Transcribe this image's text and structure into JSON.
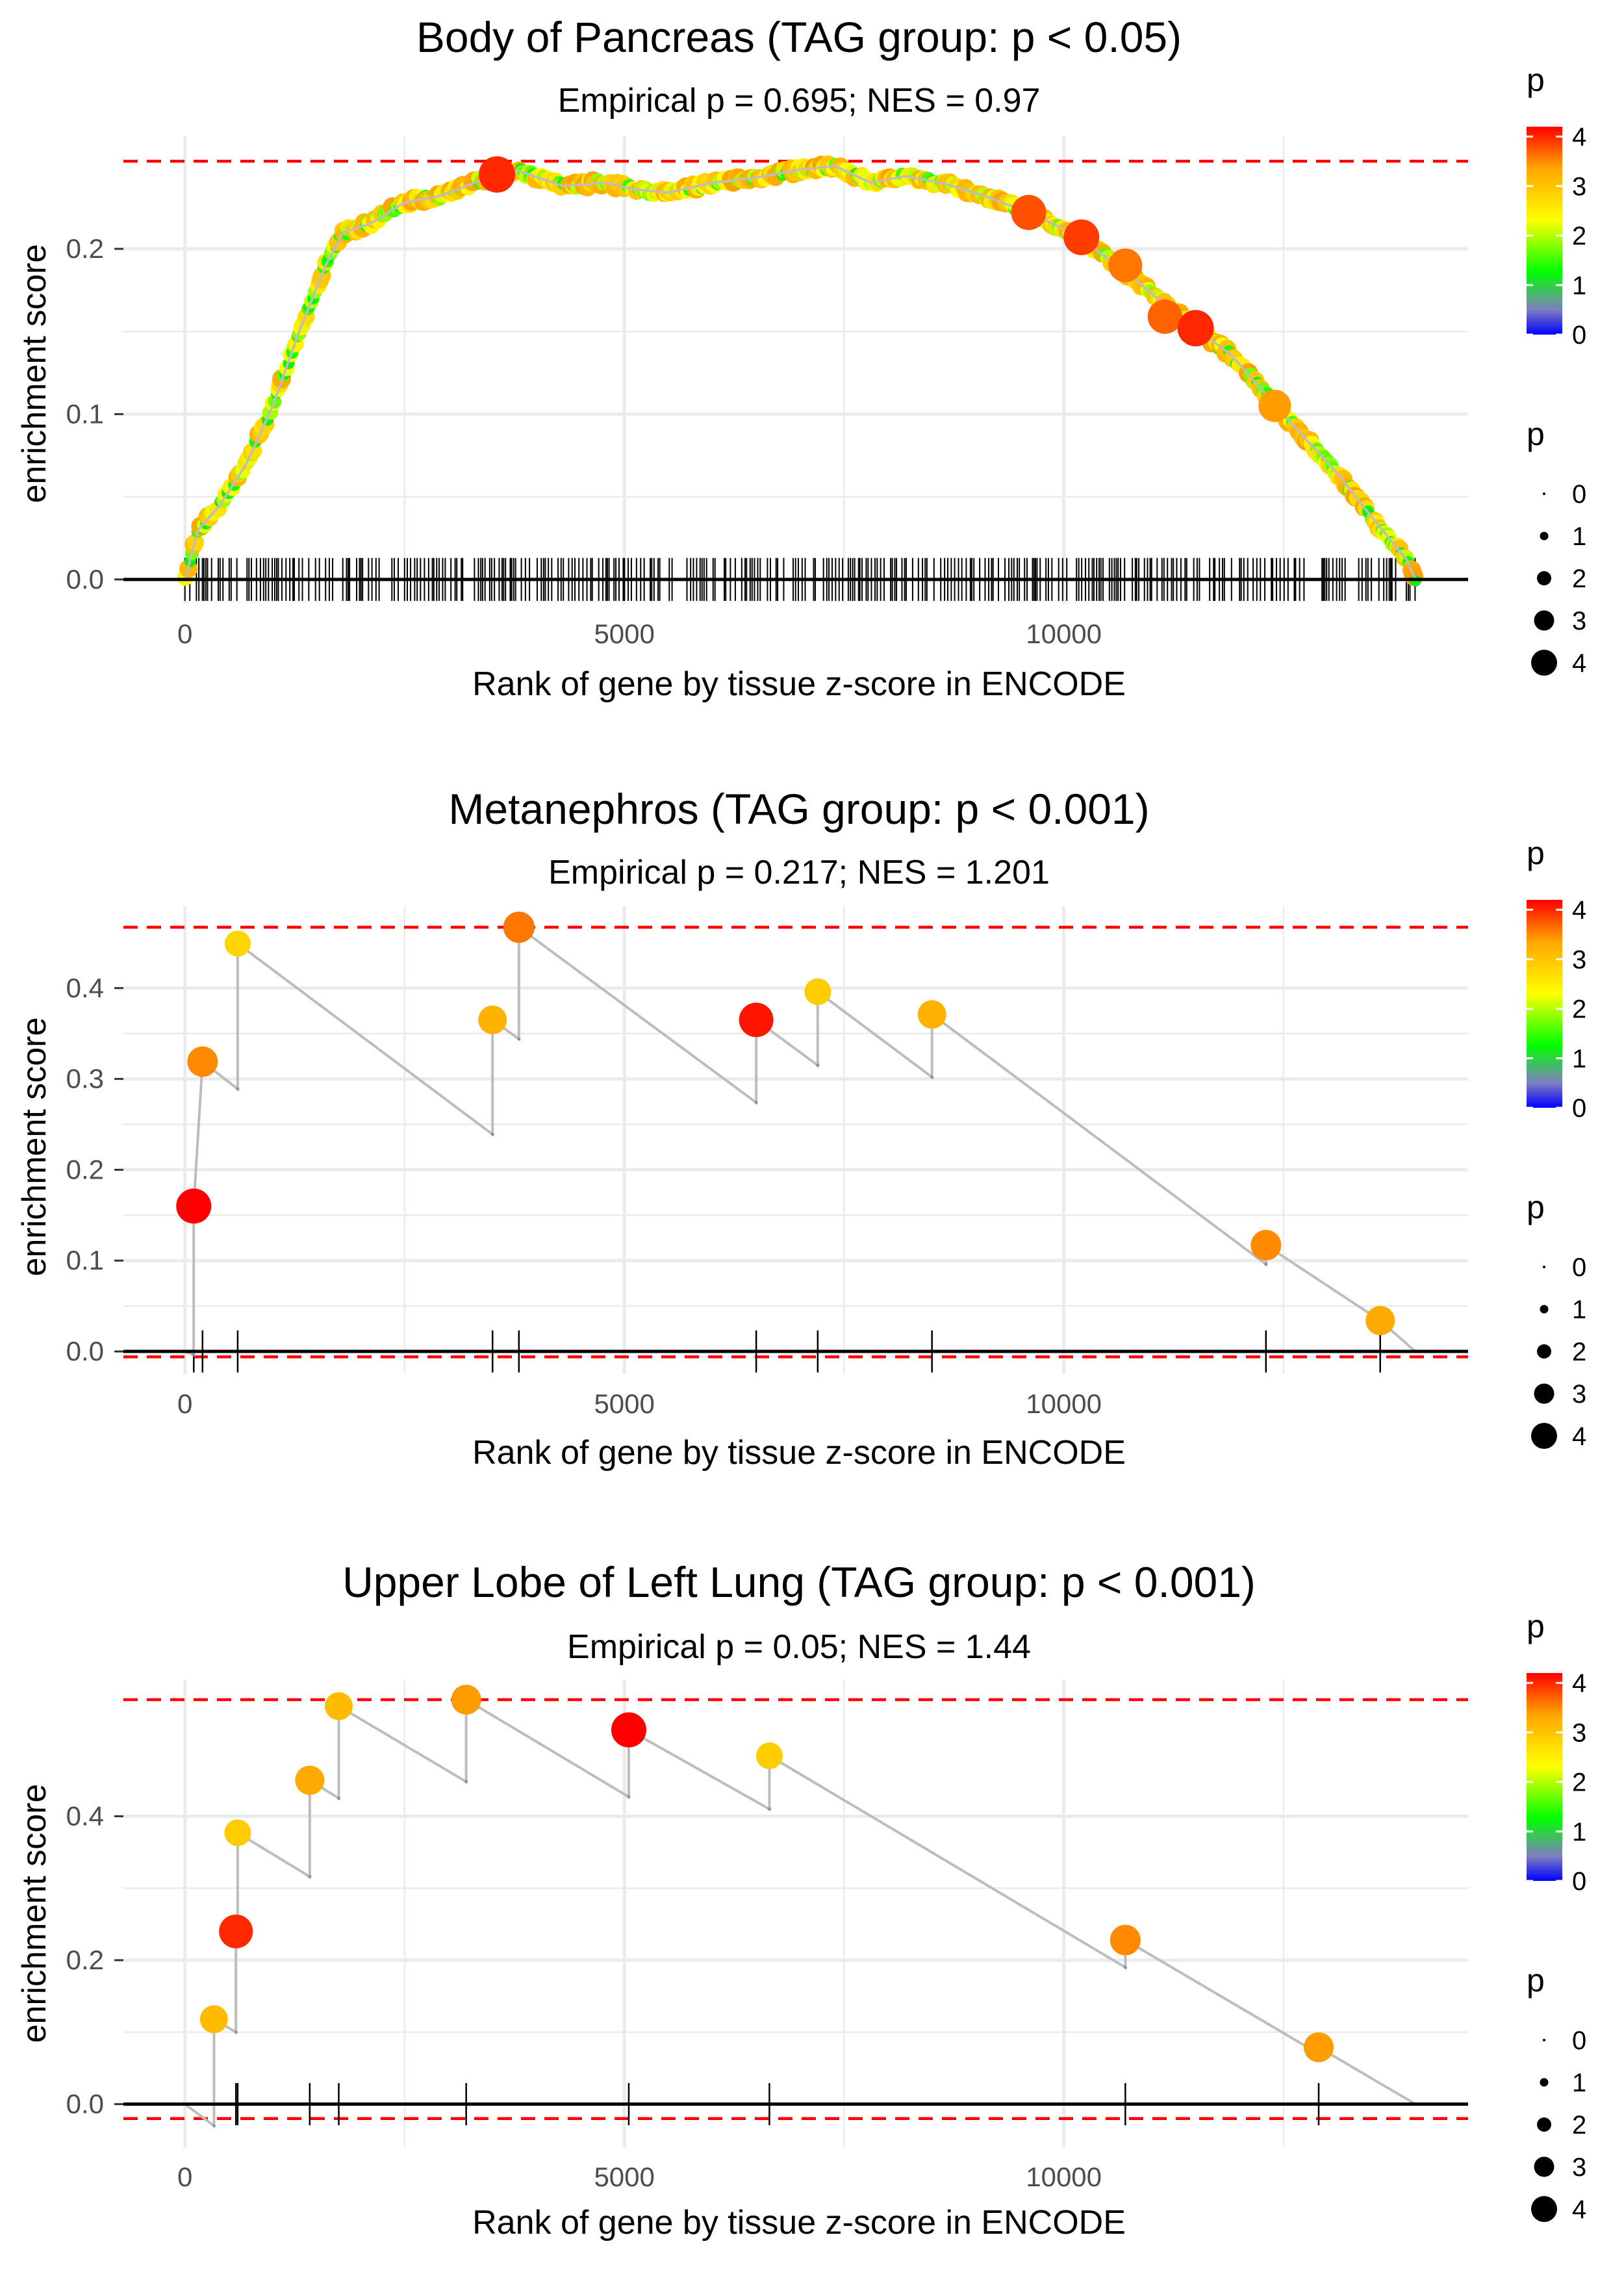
{
  "chart_data": [
    {
      "type": "line",
      "title": "Body of Pancreas (TAG group: p < 0.05)",
      "subtitle": "Empirical p = 0.695; NES = 0.97",
      "xlabel": "Rank of gene by tissue z-score in ENCODE",
      "ylabel": "enrichment score",
      "xlim": [
        -700,
        14600
      ],
      "ylim": [
        -0.015,
        0.268
      ],
      "xticks": [
        0,
        5000,
        10000
      ],
      "xtick_labels": [
        "0",
        "5000",
        "10000"
      ],
      "yticks": [
        0.0,
        0.1,
        0.2
      ],
      "ytick_labels": [
        "0.0",
        "0.1",
        "0.2"
      ],
      "max_line": 0.253,
      "min_line": null,
      "dense": true,
      "curve": {
        "x": [
          0,
          150,
          400,
          700,
          1000,
          1300,
          1600,
          1800,
          2100,
          2500,
          2900,
          3300,
          3600,
          3800,
          4300,
          4800,
          5100,
          5500,
          6000,
          6500,
          7000,
          7400,
          7800,
          8200,
          8600,
          9100,
          9600,
          10000,
          10400,
          10800,
          11200,
          11500,
          11900,
          12300,
          12700,
          13100,
          13500,
          13900,
          14000
        ],
        "y": [
          0.0,
          0.03,
          0.045,
          0.07,
          0.105,
          0.15,
          0.19,
          0.21,
          0.215,
          0.228,
          0.232,
          0.24,
          0.246,
          0.247,
          0.238,
          0.24,
          0.236,
          0.234,
          0.24,
          0.243,
          0.248,
          0.25,
          0.24,
          0.244,
          0.24,
          0.232,
          0.222,
          0.212,
          0.198,
          0.182,
          0.164,
          0.152,
          0.136,
          0.112,
          0.088,
          0.065,
          0.038,
          0.012,
          0.0
        ]
      },
      "highlighted_points": [
        {
          "x": 3550,
          "y": 0.245,
          "p": 4.0
        },
        {
          "x": 9600,
          "y": 0.222,
          "p": 3.8
        },
        {
          "x": 10200,
          "y": 0.207,
          "p": 3.9
        },
        {
          "x": 10700,
          "y": 0.19,
          "p": 3.6
        },
        {
          "x": 11150,
          "y": 0.159,
          "p": 3.7
        },
        {
          "x": 11500,
          "y": 0.152,
          "p": 4.0
        },
        {
          "x": 12400,
          "y": 0.105,
          "p": 3.4
        }
      ]
    },
    {
      "type": "line",
      "title": "Metanephros (TAG group: p < 0.001)",
      "subtitle": "Empirical p = 0.217; NES = 1.201",
      "xlabel": "Rank of gene by tissue z-score in ENCODE",
      "ylabel": "enrichment score",
      "xlim": [
        -700,
        14600
      ],
      "ylim": [
        -0.025,
        0.49
      ],
      "xticks": [
        0,
        5000,
        10000
      ],
      "xtick_labels": [
        "0",
        "5000",
        "10000"
      ],
      "yticks": [
        0.0,
        0.1,
        0.2,
        0.3,
        0.4
      ],
      "ytick_labels": [
        "0.0",
        "0.1",
        "0.2",
        "0.3",
        "0.4"
      ],
      "max_line": 0.467,
      "min_line": -0.006,
      "dense": false,
      "path": {
        "x": [
          0,
          100,
          100,
          200,
          200,
          600,
          600,
          3500,
          3500,
          3800,
          3800,
          6500,
          6500,
          7200,
          7200,
          8500,
          8500,
          12300,
          12300,
          13600,
          14000
        ],
        "y": [
          0.0,
          -0.004,
          0.16,
          0.319,
          0.319,
          0.289,
          0.449,
          0.239,
          0.365,
          0.344,
          0.467,
          0.274,
          0.365,
          0.315,
          0.396,
          0.302,
          0.371,
          0.096,
          0.117,
          0.034,
          0.0
        ]
      },
      "points": [
        {
          "x": 100,
          "y": 0.16,
          "p": 4.2
        },
        {
          "x": 200,
          "y": 0.319,
          "p": 3.5
        },
        {
          "x": 600,
          "y": 0.449,
          "p": 2.8
        },
        {
          "x": 3500,
          "y": 0.365,
          "p": 3.2
        },
        {
          "x": 3800,
          "y": 0.467,
          "p": 3.6
        },
        {
          "x": 6500,
          "y": 0.365,
          "p": 4.1
        },
        {
          "x": 7200,
          "y": 0.396,
          "p": 2.9
        },
        {
          "x": 8500,
          "y": 0.371,
          "p": 3.2
        },
        {
          "x": 12300,
          "y": 0.117,
          "p": 3.5
        },
        {
          "x": 13600,
          "y": 0.034,
          "p": 3.3
        }
      ]
    },
    {
      "type": "line",
      "title": "Upper Lobe of Left Lung (TAG group: p < 0.001)",
      "subtitle": "Empirical p = 0.05; NES = 1.44",
      "xlabel": "Rank of gene by tissue z-score in ENCODE",
      "ylabel": "enrichment score",
      "xlim": [
        -700,
        14600
      ],
      "ylim": [
        -0.06,
        0.59
      ],
      "xticks": [
        0,
        5000,
        10000
      ],
      "xtick_labels": [
        "0",
        "5000",
        "10000"
      ],
      "yticks": [
        0.0,
        0.2,
        0.4
      ],
      "ytick_labels": [
        "0.0",
        "0.2",
        "0.4"
      ],
      "max_line": 0.562,
      "min_line": -0.02,
      "dense": false,
      "path": {
        "x": [
          0,
          330,
          330,
          580,
          580,
          600,
          600,
          1420,
          1420,
          1750,
          1750,
          3200,
          3200,
          5050,
          5050,
          6650,
          6650,
          10700,
          10700,
          12900,
          12900,
          14000
        ],
        "y": [
          0.0,
          -0.03,
          0.118,
          0.1,
          0.24,
          0.24,
          0.377,
          0.316,
          0.45,
          0.425,
          0.553,
          0.448,
          0.562,
          0.427,
          0.52,
          0.41,
          0.484,
          0.19,
          0.228,
          0.07,
          0.079,
          0.0
        ]
      },
      "points": [
        {
          "x": 330,
          "y": 0.118,
          "p": 3.1
        },
        {
          "x": 580,
          "y": 0.24,
          "p": 4.0
        },
        {
          "x": 600,
          "y": 0.377,
          "p": 2.9
        },
        {
          "x": 1420,
          "y": 0.45,
          "p": 3.3
        },
        {
          "x": 1750,
          "y": 0.553,
          "p": 3.1
        },
        {
          "x": 3200,
          "y": 0.562,
          "p": 3.4
        },
        {
          "x": 5050,
          "y": 0.52,
          "p": 4.2
        },
        {
          "x": 6650,
          "y": 0.484,
          "p": 2.9
        },
        {
          "x": 10700,
          "y": 0.228,
          "p": 3.5
        },
        {
          "x": 12900,
          "y": 0.079,
          "p": 3.4
        }
      ]
    }
  ],
  "legend": {
    "colorbar_title": "p",
    "colorbar_labels": [
      "4",
      "3",
      "2",
      "1",
      "0"
    ],
    "size_title": "p",
    "size_labels": [
      "0",
      "1",
      "2",
      "3",
      "4"
    ]
  },
  "colors": {
    "gridline": "#ebebeb",
    "reference_line": "#ff0000",
    "path_line": "#bdbdbd",
    "axis_line": "#000000",
    "scale": [
      "#0000ff",
      "#7f7fbf",
      "#00ff00",
      "#ffff00",
      "#ffa500",
      "#ff0000"
    ]
  }
}
